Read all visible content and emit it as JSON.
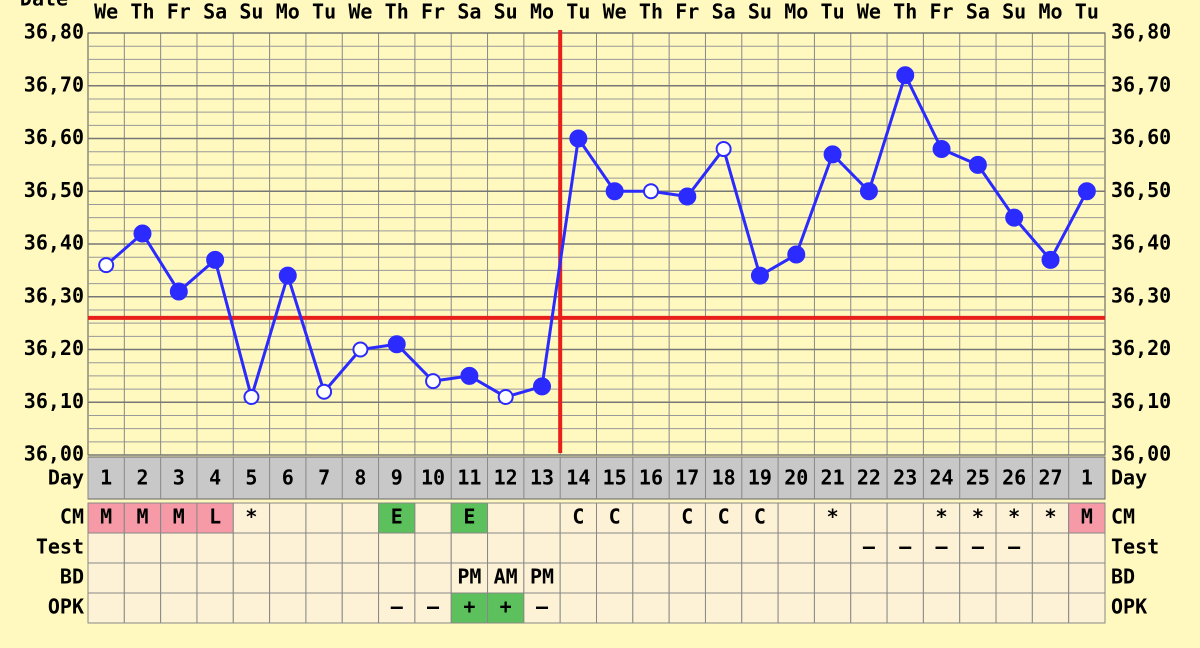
{
  "chart_data": {
    "type": "line",
    "x_label": "Date",
    "day_label": "Day",
    "weekdays": [
      "We",
      "Th",
      "Fr",
      "Sa",
      "Su",
      "Mo",
      "Tu",
      "We",
      "Th",
      "Fr",
      "Sa",
      "Su",
      "Mo",
      "Tu",
      "We",
      "Th",
      "Fr",
      "Sa",
      "Su",
      "Mo",
      "Tu",
      "We",
      "Th",
      "Fr",
      "Sa",
      "Su",
      "Mo",
      "Tu"
    ],
    "categories": [
      "1",
      "2",
      "3",
      "4",
      "5",
      "6",
      "7",
      "8",
      "9",
      "10",
      "11",
      "12",
      "13",
      "14",
      "15",
      "16",
      "17",
      "18",
      "19",
      "20",
      "21",
      "22",
      "23",
      "24",
      "25",
      "26",
      "27",
      "1"
    ],
    "series": [
      {
        "color": "#2b2bff",
        "values": [
          36.36,
          36.42,
          36.31,
          36.37,
          36.11,
          36.34,
          36.12,
          36.2,
          36.21,
          36.14,
          36.15,
          36.11,
          36.13,
          36.6,
          36.5,
          36.5,
          36.49,
          36.58,
          36.34,
          36.38,
          36.57,
          36.5,
          36.72,
          36.58,
          36.55,
          36.45,
          36.37,
          36.5
        ],
        "markers": [
          "open",
          "filled",
          "filled",
          "filled",
          "open",
          "filled",
          "open",
          "open",
          "filled",
          "open",
          "filled",
          "open",
          "filled",
          "filled",
          "filled",
          "open",
          "filled",
          "open",
          "filled",
          "filled",
          "filled",
          "filled",
          "filled",
          "filled",
          "filled",
          "filled",
          "filled",
          "filled"
        ]
      }
    ],
    "ylim": [
      36.0,
      36.8
    ],
    "yticks": [
      {
        "value": 36.0,
        "label": "36,00"
      },
      {
        "value": 36.1,
        "label": "36,10"
      },
      {
        "value": 36.2,
        "label": "36,20"
      },
      {
        "value": 36.3,
        "label": "36,30"
      },
      {
        "value": 36.4,
        "label": "36,40"
      },
      {
        "value": 36.5,
        "label": "36,50"
      },
      {
        "value": 36.6,
        "label": "36,60"
      },
      {
        "value": 36.7,
        "label": "36,70"
      },
      {
        "value": 36.8,
        "label": "36,80"
      }
    ],
    "grid": true,
    "coverline": 36.26,
    "ovulation_day": "13",
    "marker_line_color": "#e8201c",
    "rows": [
      {
        "label": "CM",
        "cells": [
          "M",
          "M",
          "M",
          "L",
          "*",
          null,
          null,
          null,
          "E",
          null,
          "E",
          null,
          null,
          "C",
          "C",
          null,
          "C",
          "C",
          "C",
          null,
          "*",
          null,
          null,
          "*",
          "*",
          "*",
          "*",
          "M"
        ],
        "colors": [
          "#f59aa6",
          "#f59aa6",
          "#f59aa6",
          "#f59aa6",
          null,
          null,
          null,
          null,
          "#5cc05c",
          null,
          "#5cc05c",
          null,
          null,
          null,
          null,
          null,
          null,
          null,
          null,
          null,
          null,
          null,
          null,
          null,
          null,
          null,
          null,
          "#f59aa6"
        ]
      },
      {
        "label": "Test",
        "cells": [
          null,
          null,
          null,
          null,
          null,
          null,
          null,
          null,
          null,
          null,
          null,
          null,
          null,
          null,
          null,
          null,
          null,
          null,
          null,
          null,
          null,
          "–",
          "–",
          "–",
          "–",
          "–",
          null,
          null
        ]
      },
      {
        "label": "BD",
        "cells": [
          null,
          null,
          null,
          null,
          null,
          null,
          null,
          null,
          null,
          null,
          "PM",
          "AM",
          "PM",
          null,
          null,
          null,
          null,
          null,
          null,
          null,
          null,
          null,
          null,
          null,
          null,
          null,
          null,
          null
        ]
      },
      {
        "label": "OPK",
        "cells": [
          null,
          null,
          null,
          null,
          null,
          null,
          null,
          null,
          "–",
          "–",
          "+",
          "+",
          "–",
          null,
          null,
          null,
          null,
          null,
          null,
          null,
          null,
          null,
          null,
          null,
          null,
          null,
          null,
          null
        ],
        "colors": [
          null,
          null,
          null,
          null,
          null,
          null,
          null,
          null,
          null,
          null,
          "#5cc05c",
          "#5cc05c",
          null,
          null,
          null,
          null,
          null,
          null,
          null,
          null,
          null,
          null,
          null,
          null,
          null,
          null,
          null,
          null
        ]
      }
    ]
  }
}
